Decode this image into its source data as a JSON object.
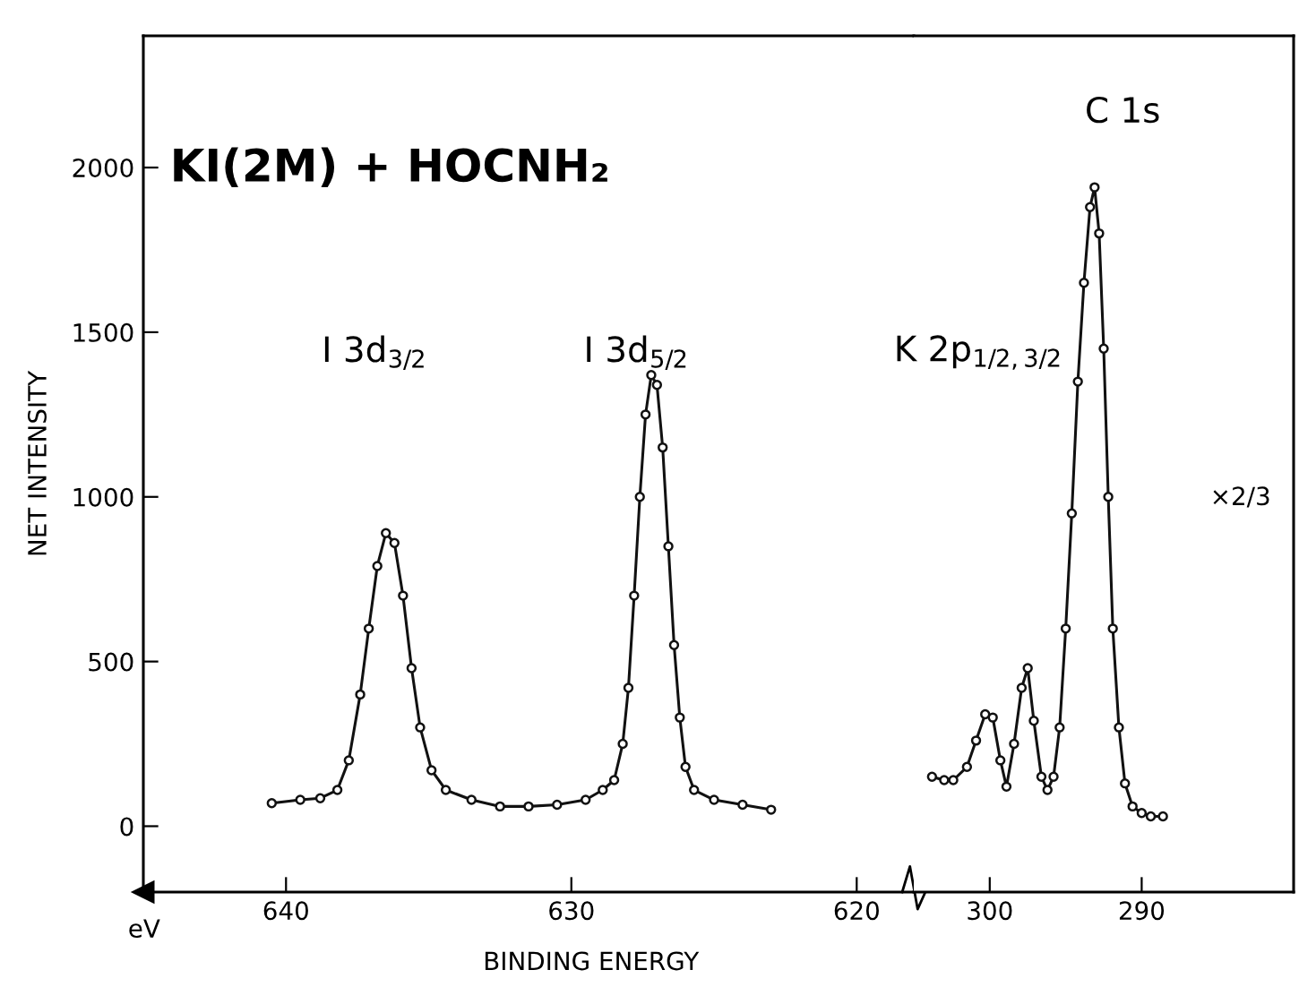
{
  "chart_data": [
    {
      "type": "line",
      "title": "KI(2M) + HOCNH₂",
      "xlabel": "BINDING ENERGY",
      "ylabel": "NET INTENSITY",
      "xlim": [
        645,
        618
      ],
      "xticks": [
        640,
        630,
        620
      ],
      "ylim": [
        -200,
        2400
      ],
      "yticks": [
        0,
        500,
        1000,
        1500,
        2000
      ],
      "marker": "circle",
      "line_style": "solid",
      "grid": false,
      "legend": false,
      "annotations": [
        "I 3d$_{3/2}$",
        "I 3d$_{5/2}$",
        "eV"
      ],
      "series": [
        {
          "color": "#111111",
          "x": [
            640.5,
            639.5,
            638.8,
            638.2,
            637.8,
            637.4,
            637.1,
            636.8,
            636.5,
            636.2,
            635.9,
            635.6,
            635.3,
            634.9,
            634.4,
            633.5,
            632.5,
            631.5,
            630.5,
            629.5,
            628.9,
            628.5,
            628.2,
            628.0,
            627.8,
            627.6,
            627.4,
            627.2,
            627.0,
            626.8,
            626.6,
            626.4,
            626.2,
            626.0,
            625.7,
            625.0,
            624.0,
            623.0
          ],
          "values": [
            70,
            80,
            85,
            110,
            200,
            400,
            600,
            790,
            890,
            860,
            700,
            480,
            300,
            170,
            110,
            80,
            60,
            60,
            65,
            80,
            110,
            140,
            250,
            420,
            700,
            1000,
            1250,
            1370,
            1340,
            1150,
            850,
            550,
            330,
            180,
            110,
            80,
            65,
            50
          ]
        }
      ]
    },
    {
      "type": "line",
      "xlim": [
        305,
        280
      ],
      "xticks": [
        300,
        290
      ],
      "ylim": [
        -200,
        2400
      ],
      "tick_labels": "x",
      "marker": "circle",
      "line_style": "solid",
      "grid": false,
      "legend": false,
      "annotations": [
        "K 2p$_{1/2,3/2}$",
        "C 1s",
        "×2/3"
      ],
      "series": [
        {
          "color": "#111111",
          "x": [
            303.8,
            303.0,
            302.4,
            301.5,
            300.9,
            300.3,
            299.8,
            299.3,
            298.9,
            298.4,
            297.9,
            297.5,
            297.1,
            296.6,
            296.2,
            295.8,
            295.4,
            295.0,
            294.6,
            294.2,
            293.8,
            293.4,
            293.1,
            292.8,
            292.5,
            292.2,
            291.9,
            291.5,
            291.1,
            290.6,
            290.0,
            289.4,
            288.6
          ],
          "values": [
            150,
            140,
            140,
            180,
            260,
            340,
            330,
            200,
            120,
            250,
            420,
            480,
            320,
            150,
            110,
            150,
            300,
            600,
            950,
            1350,
            1650,
            1880,
            1940,
            1800,
            1450,
            1000,
            600,
            300,
            130,
            60,
            40,
            30,
            30
          ]
        }
      ]
    }
  ]
}
